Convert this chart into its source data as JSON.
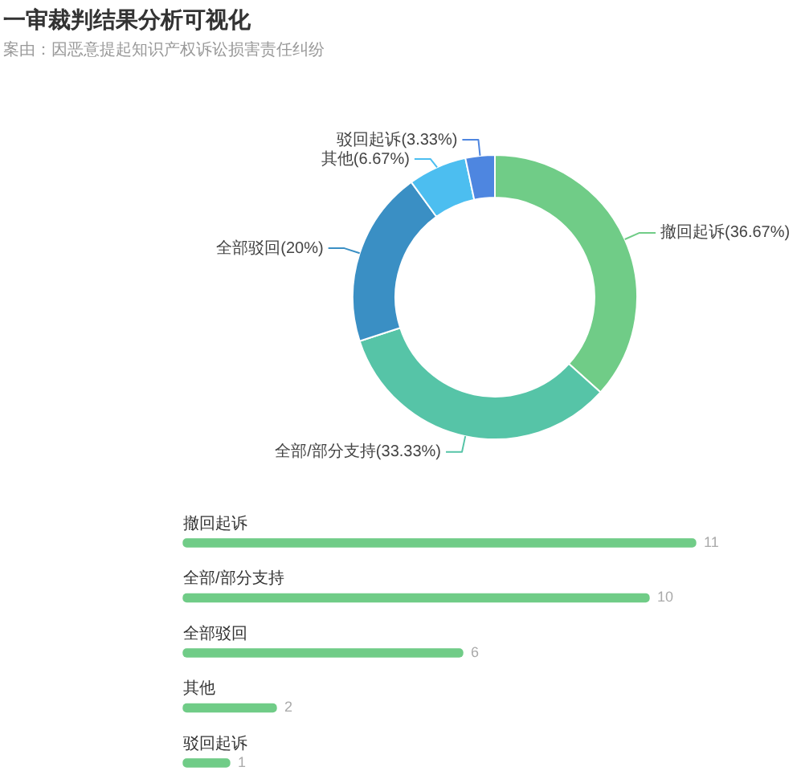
{
  "chart_data": [
    {
      "type": "donut",
      "title": "一审裁判结果分析可视化",
      "subtitle": "案由：因恶意提起知识产权诉讼损害责任纠纷",
      "categories": [
        "撤回起诉",
        "全部/部分支持",
        "全部驳回",
        "其他",
        "驳回起诉"
      ],
      "values": [
        36.67,
        33.33,
        20,
        6.67,
        3.33
      ],
      "colors": [
        "#70cc87",
        "#56c4a7",
        "#3a8fc4",
        "#4cbef0",
        "#4e86e0"
      ],
      "value_labels": [
        "(36.67%)",
        "(33.33%)",
        "(20%)",
        "(6.67%)",
        "(3.33%)"
      ]
    },
    {
      "type": "bar",
      "orientation": "horizontal",
      "categories": [
        "撤回起诉",
        "全部/部分支持",
        "全部驳回",
        "其他",
        "驳回起诉"
      ],
      "values": [
        11,
        10,
        6,
        2,
        1
      ],
      "color": "#70cc87",
      "data_labels": true,
      "tick_labels": "y"
    }
  ]
}
